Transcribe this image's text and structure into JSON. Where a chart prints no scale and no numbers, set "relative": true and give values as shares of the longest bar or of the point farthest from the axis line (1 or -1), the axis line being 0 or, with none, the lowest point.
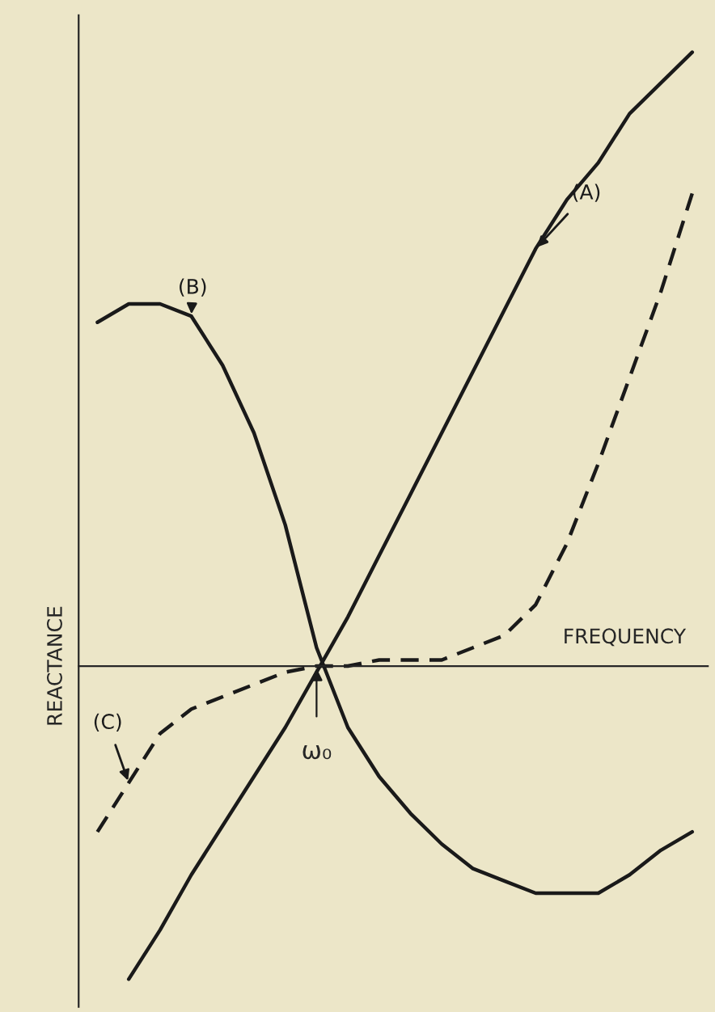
{
  "chart_data": {
    "type": "line",
    "relative": true,
    "xlabel": "FREQUENCY",
    "ylabel": "REACTANCE",
    "annotations": [
      "ω₀"
    ],
    "legend": false,
    "marker": "none",
    "categories": [
      null,
      null,
      null,
      null,
      null,
      null,
      null,
      null,
      null,
      null,
      null,
      null,
      null,
      null,
      null,
      null,
      null,
      null,
      null,
      null
    ],
    "series": [
      {
        "name": "(A)",
        "color": "#1a1a1a",
        "line_style": "solid",
        "values": [
          null,
          -0.51,
          -0.43,
          -0.34,
          -0.26,
          -0.18,
          -0.1,
          -0.01,
          0.08,
          0.18,
          0.28,
          0.38,
          0.48,
          0.58,
          0.68,
          0.76,
          0.82,
          0.9,
          0.95,
          1.0
        ]
      },
      {
        "name": "(B)",
        "color": "#1a1a1a",
        "line_style": "solid",
        "values": [
          0.56,
          0.59,
          0.59,
          0.57,
          0.49,
          0.38,
          0.23,
          0.03,
          -0.1,
          -0.18,
          -0.24,
          -0.29,
          -0.33,
          -0.35,
          -0.37,
          -0.37,
          -0.37,
          -0.34,
          -0.3,
          -0.27
        ]
      },
      {
        "name": "(C)",
        "color": "#1a1a1a",
        "line_style": "dashed",
        "values": [
          -0.27,
          -0.19,
          -0.11,
          -0.07,
          -0.05,
          -0.03,
          -0.01,
          0.0,
          0.0,
          0.01,
          0.01,
          0.01,
          0.03,
          0.05,
          0.1,
          0.2,
          0.33,
          0.47,
          0.61,
          0.77
        ]
      }
    ]
  }
}
